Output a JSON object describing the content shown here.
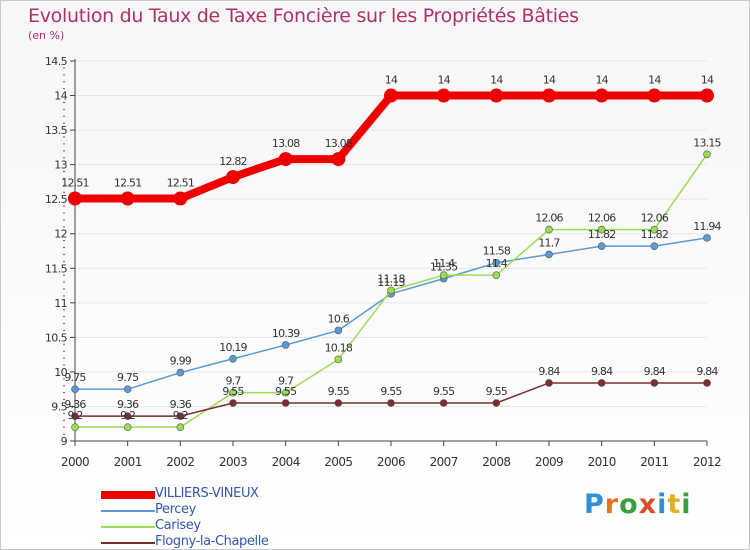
{
  "title": "Evolution du Taux de Taxe Foncière sur les Propriétés Bâties",
  "unit_label": "(en %)",
  "logo_text": "Proxiti",
  "colors": {
    "title": "#b0306a",
    "axis_text": "#333333",
    "legend_text": "#3355aa",
    "grid": "#e6e6e6"
  },
  "chart_data": {
    "type": "line",
    "title": "Evolution du Taux de Taxe Foncière sur les Propriétés Bâties",
    "ylabel": "(en %)",
    "xlabel": "",
    "x": [
      "2000",
      "2001",
      "2002",
      "2003",
      "2004",
      "2005",
      "2006",
      "2007",
      "2008",
      "2009",
      "2010",
      "2011",
      "2012"
    ],
    "ylim": [
      9,
      14.5
    ],
    "yticks": [
      "9",
      "9.5",
      "10",
      "10.5",
      "11",
      "11.5",
      "12",
      "12.5",
      "13",
      "13.5",
      "14",
      "14.5"
    ],
    "grid": true,
    "legend": "bottom-left",
    "series": [
      {
        "name": "VILLIERS-VINEUX",
        "color": "#ee0000",
        "thick": true,
        "values": [
          12.51,
          12.51,
          12.51,
          12.82,
          13.08,
          13.08,
          14,
          14,
          14,
          14,
          14,
          14,
          14
        ],
        "labels": [
          "12.51",
          "12.51",
          "12.51",
          "12.82",
          "13.08",
          "13.08",
          "14",
          "14",
          "14",
          "14",
          "14",
          "14",
          "14"
        ]
      },
      {
        "name": "Percey",
        "color": "#5b9bd5",
        "thick": false,
        "values": [
          9.75,
          9.75,
          9.99,
          10.19,
          10.39,
          10.6,
          11.13,
          11.35,
          11.58,
          11.7,
          11.82,
          11.82,
          11.94
        ],
        "labels": [
          "9.75",
          "9.75",
          "9.99",
          "10.19",
          "10.39",
          "10.6",
          "11.13",
          "11.35",
          "11.58",
          "11.7",
          "11.82",
          "11.82",
          "11.94"
        ]
      },
      {
        "name": "Carisey",
        "color": "#99dd55",
        "thick": false,
        "values": [
          9.2,
          9.2,
          9.2,
          9.7,
          9.7,
          10.18,
          11.18,
          11.4,
          11.4,
          12.06,
          12.06,
          12.06,
          13.15
        ],
        "labels": [
          "9.2",
          "9.2",
          "9.2",
          "9.7",
          "9.7",
          "10.18",
          "11.18",
          "11.4",
          "11.4",
          "12.06",
          "12.06",
          "12.06",
          "13.15"
        ]
      },
      {
        "name": "Flogny-la-Chapelle",
        "color": "#7a2e2e",
        "thick": false,
        "values": [
          9.36,
          9.36,
          9.36,
          9.55,
          9.55,
          9.55,
          9.55,
          9.55,
          9.55,
          9.84,
          9.84,
          9.84,
          9.84
        ],
        "labels": [
          "9.36",
          "9.36",
          "9.36",
          "9.55",
          "9.55",
          "9.55",
          "9.55",
          "9.55",
          "9.55",
          "9.84",
          "9.84",
          "9.84",
          "9.84"
        ]
      }
    ]
  }
}
